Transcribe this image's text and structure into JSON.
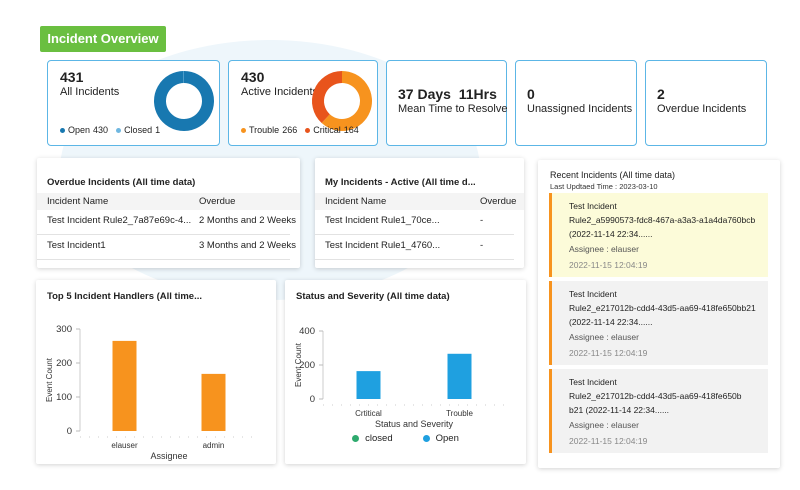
{
  "header": {
    "title": "Incident Overview"
  },
  "kpis": [
    {
      "value": 431,
      "label": "All Incidents",
      "donut": [
        {
          "name": "Open",
          "value": 430,
          "color": "#1878b0"
        },
        {
          "name": "Closed",
          "value": 1,
          "color": "#6fb7e0"
        }
      ]
    },
    {
      "value": 430,
      "label": "Active Incidents",
      "donut": [
        {
          "name": "Trouble",
          "value": 266,
          "color": "#f7931e"
        },
        {
          "name": "Critical",
          "value": 164,
          "color": "#e8541c"
        }
      ]
    },
    {
      "value": "37 Days  11Hrs",
      "label": "Mean Time to Resolve"
    },
    {
      "value": 0,
      "label": "Unassigned Incidents"
    },
    {
      "value": 2,
      "label": "Overdue Incidents"
    }
  ],
  "tables": [
    {
      "title": "Overdue Incidents (All time data)",
      "columns": [
        "Incident Name",
        "Overdue"
      ],
      "rows": [
        [
          "Test Incident Rule2_7a87e69c-4...",
          "2 Months and 2 Weeks"
        ],
        [
          "Test Incident1",
          "3 Months and 2 Weeks"
        ]
      ]
    },
    {
      "title": "My Incidents - Active (All time d...",
      "columns": [
        "Incident Name",
        "Overdue"
      ],
      "rows": [
        [
          "Test Incident Rule1_70ce...",
          "-"
        ],
        [
          "Test Incident Rule1_4760...",
          "-"
        ]
      ]
    }
  ],
  "charts": [
    {
      "type": "bar",
      "title": "Top 5 Incident Handlers (All time...",
      "x_label": "Assignee",
      "y_label": "Event Count",
      "categories": [
        "elauser",
        "admin"
      ],
      "values": [
        265,
        168
      ],
      "color": "#f7931e",
      "ylim": [
        0,
        300
      ],
      "yticks": [
        0,
        100,
        200,
        300
      ]
    },
    {
      "type": "bar",
      "title": "Status and Severity (All time data)",
      "x_label": "Status and Severity",
      "y_label": "Event Count",
      "categories": [
        "Crtitical",
        "Trouble"
      ],
      "series": [
        {
          "name": "closed",
          "color": "#2eaa6e",
          "values": [
            0,
            0
          ]
        },
        {
          "name": "Open",
          "color": "#1fa0e0",
          "values": [
            164,
            266
          ]
        }
      ],
      "ylim": [
        0,
        400
      ],
      "yticks": [
        0,
        200,
        400
      ]
    }
  ],
  "recent": {
    "title": "Recent Incidents (All time data)",
    "subtitle": "Last Updtaed Time : 2023-03-10",
    "items": [
      {
        "lines": [
          "Test Incident",
          "Rule2_a5990573-fdc8-467a-a3a3-a1a4da760bcb",
          "(2022-11-14 22:34......"
        ],
        "assignee": "Assignee : elauser",
        "time": "2022-11-15 12:04:19"
      },
      {
        "lines": [
          "Test Incident",
          "Rule2_e217012b-cdd4-43d5-aa69-418fe650bb21",
          "(2022-11-14 22:34......"
        ],
        "assignee": "Assignee : elauser",
        "time": "2022-11-15 12:04:19"
      },
      {
        "lines": [
          "Test Incident",
          "Rule2_e217012b-cdd4-43d5-aa69-418fe650b",
          "b21 (2022-11-14 22:34......"
        ],
        "assignee": "Assignee : elauser",
        "time": "2022-11-15 12:04:19"
      }
    ]
  }
}
